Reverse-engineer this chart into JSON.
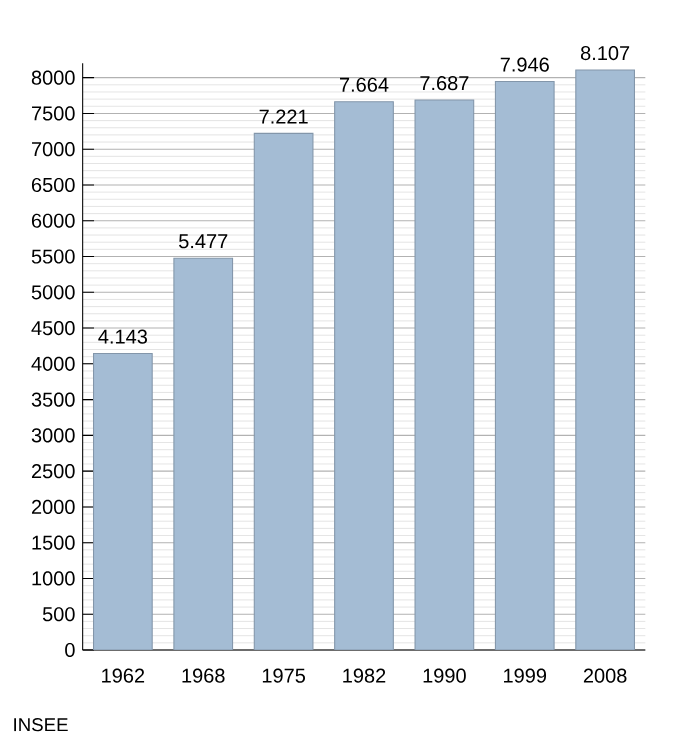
{
  "chart_data": {
    "type": "bar",
    "categories": [
      "1962",
      "1968",
      "1975",
      "1982",
      "1990",
      "1999",
      "2008"
    ],
    "values": [
      4143,
      5477,
      7221,
      7664,
      7687,
      7946,
      8107
    ],
    "value_labels": [
      "4.143",
      "5.477",
      "7.221",
      "7.664",
      "7.687",
      "7.946",
      "8.107"
    ],
    "color": "#a4bcd4",
    "ylim": [
      0,
      8200
    ],
    "yticks": [
      0,
      500,
      1000,
      1500,
      2000,
      2500,
      3000,
      3500,
      4000,
      4500,
      5000,
      5500,
      6000,
      6500,
      7000,
      7500,
      8000
    ],
    "grid": "y",
    "annotations": [
      "INSEE"
    ]
  }
}
